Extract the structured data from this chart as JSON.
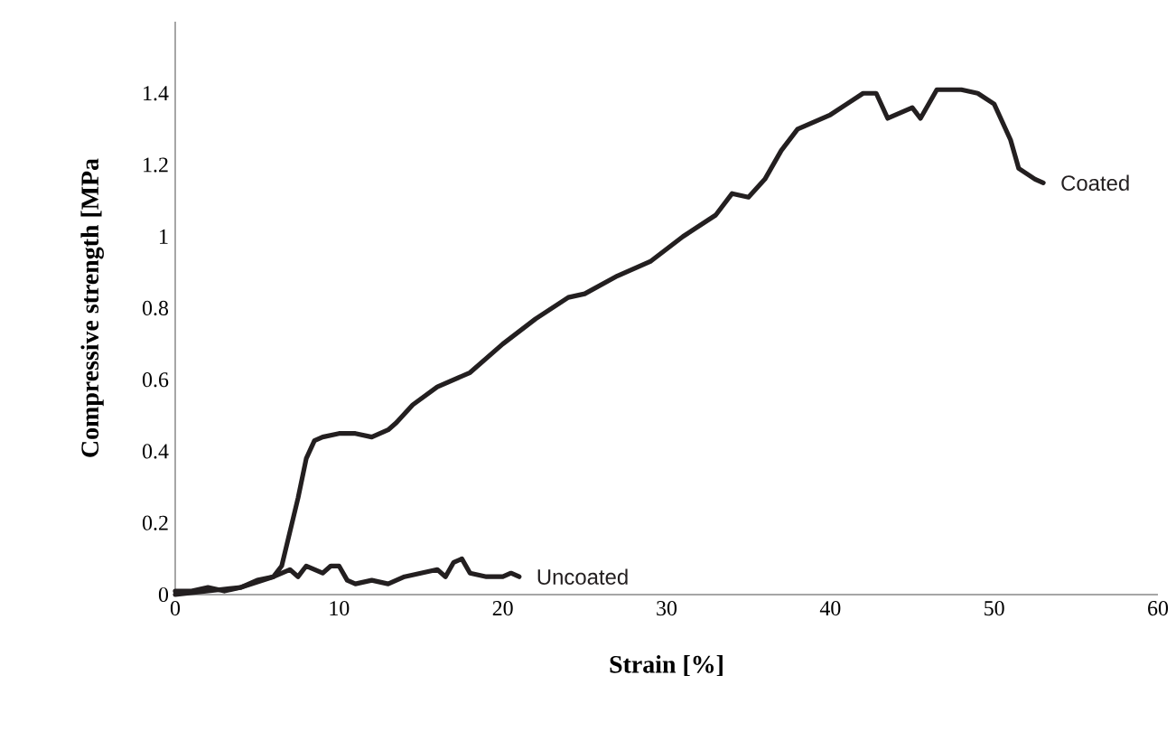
{
  "chart_data": {
    "type": "line",
    "xlabel": "Strain [%]",
    "ylabel": "Compressive strength [MPa",
    "xlim": [
      0,
      60
    ],
    "xticks": [
      0,
      10,
      20,
      30,
      40,
      50,
      60
    ],
    "ylim": [
      0,
      1.6
    ],
    "yticks": [
      0,
      0.2,
      0.4,
      0.6,
      0.8,
      1,
      1.2,
      1.4
    ],
    "grid": false,
    "legend": false,
    "marker": "none",
    "line_style": "solid",
    "series": [
      {
        "name": "Coated",
        "color": "#231f20",
        "x": [
          0,
          2,
          4,
          6,
          6.5,
          7.5,
          8,
          8.5,
          9,
          10,
          11,
          12,
          13,
          13.5,
          14.5,
          16,
          18,
          20,
          22,
          24,
          25,
          27,
          29,
          31,
          33,
          34,
          35,
          36,
          37,
          38,
          40,
          41,
          42,
          42.8,
          43.5,
          45,
          45.5,
          46.5,
          48,
          49,
          50,
          51,
          51.5,
          52.5,
          53
        ],
        "values": [
          0,
          0.01,
          0.02,
          0.05,
          0.08,
          0.27,
          0.38,
          0.43,
          0.44,
          0.45,
          0.45,
          0.44,
          0.46,
          0.48,
          0.53,
          0.58,
          0.62,
          0.7,
          0.77,
          0.83,
          0.84,
          0.89,
          0.93,
          1.0,
          1.06,
          1.12,
          1.11,
          1.16,
          1.24,
          1.3,
          1.34,
          1.37,
          1.4,
          1.4,
          1.33,
          1.36,
          1.33,
          1.41,
          1.41,
          1.4,
          1.37,
          1.27,
          1.19,
          1.16,
          1.15
        ]
      },
      {
        "name": "Uncoated",
        "color": "#231f20",
        "x": [
          0,
          1,
          2,
          3,
          4,
          5,
          6,
          7,
          7.5,
          8,
          9,
          9.5,
          10,
          10.5,
          11,
          12,
          13,
          14,
          15,
          16,
          16.5,
          17,
          17.5,
          18,
          19,
          20,
          20.5,
          21
        ],
        "values": [
          0.01,
          0.01,
          0.02,
          0.01,
          0.02,
          0.04,
          0.05,
          0.07,
          0.05,
          0.08,
          0.06,
          0.08,
          0.08,
          0.04,
          0.03,
          0.04,
          0.03,
          0.05,
          0.06,
          0.07,
          0.05,
          0.09,
          0.1,
          0.06,
          0.05,
          0.05,
          0.06,
          0.05
        ]
      }
    ]
  }
}
